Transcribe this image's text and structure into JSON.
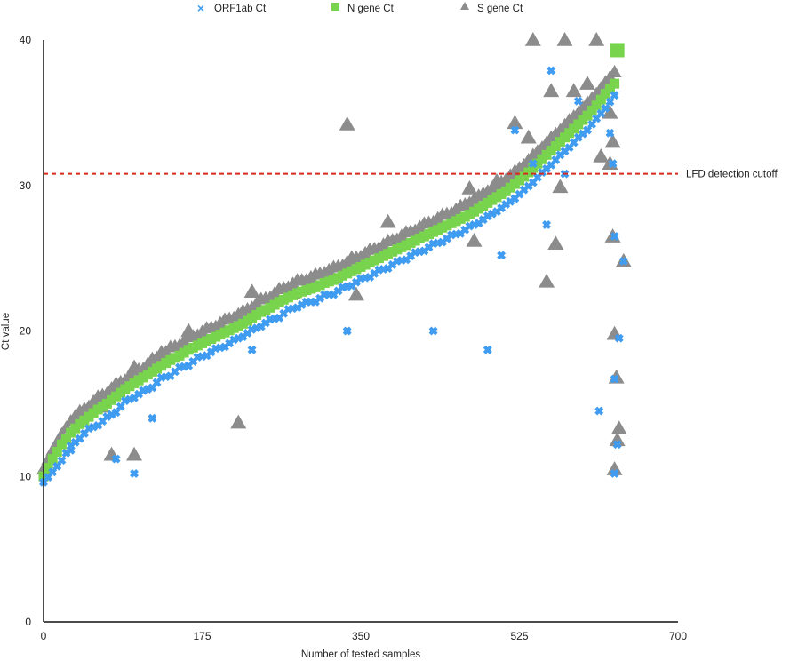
{
  "chart_data": {
    "type": "scatter",
    "title": "",
    "xlabel": "Number of tested samples",
    "ylabel": "Ct value",
    "xlim": [
      0,
      700
    ],
    "ylim": [
      0,
      40
    ],
    "xticks": [
      0,
      175,
      350,
      525,
      700
    ],
    "yticks": [
      0,
      10,
      20,
      30,
      40
    ],
    "grid": false,
    "legend_position": "top",
    "reference_line": {
      "y": 30.8,
      "label": "LFD detection cutoff",
      "color": "#d62a1e",
      "style": "dashed"
    },
    "series": [
      {
        "name": "S gene Ct",
        "marker": "triangle",
        "color": "#8c8c8c",
        "x_start": 0,
        "x_step": 10,
        "values": [
          10.5,
          11.8,
          12.9,
          13.8,
          14.5,
          14.8,
          15.5,
          15.7,
          16.4,
          16.6,
          17.3,
          17.4,
          18.1,
          18.2,
          18.9,
          19,
          19.6,
          19.7,
          20.2,
          20.3,
          20.8,
          20.9,
          21.4,
          21.6,
          22.2,
          22.3,
          22.9,
          23,
          23.5,
          23.5,
          23.9,
          24,
          24.4,
          24.5,
          25,
          25.1,
          25.6,
          25.7,
          26.2,
          26.3,
          26.8,
          26.9,
          27.4,
          27.5,
          28,
          28.1,
          28.6,
          28.8,
          29.3,
          29.6,
          30.1,
          30.4,
          31,
          31.4,
          32.1,
          32.6,
          33.3,
          33.8,
          34.5,
          35,
          35.7,
          36.3,
          37.1,
          37.8
        ],
        "outliers": [
          [
            65,
            14.8
          ],
          [
            75,
            11.5
          ],
          [
            100,
            11.5
          ],
          [
            100,
            17.5
          ],
          [
            130,
            18.5
          ],
          [
            160,
            20
          ],
          [
            215,
            13.7
          ],
          [
            230,
            22.7
          ],
          [
            275,
            22.6
          ],
          [
            335,
            34.2
          ],
          [
            340,
            25
          ],
          [
            345,
            22.5
          ],
          [
            380,
            27.5
          ],
          [
            470,
            29.8
          ],
          [
            475,
            26.2
          ],
          [
            500,
            30.3
          ],
          [
            520,
            34.3
          ],
          [
            535,
            33.3
          ],
          [
            540,
            40
          ],
          [
            555,
            23.4
          ],
          [
            560,
            36.5
          ],
          [
            565,
            26
          ],
          [
            570,
            29.9
          ],
          [
            575,
            40
          ],
          [
            585,
            36.5
          ],
          [
            600,
            37
          ],
          [
            610,
            40
          ],
          [
            615,
            32
          ],
          [
            625,
            31.5
          ],
          [
            628,
            26.5
          ],
          [
            630,
            19.8
          ],
          [
            632,
            16.8
          ],
          [
            635,
            13.3
          ],
          [
            633,
            12.5
          ],
          [
            630,
            10.5
          ],
          [
            640,
            24.8
          ],
          [
            628,
            33
          ],
          [
            625,
            35
          ]
        ]
      },
      {
        "name": "N gene Ct",
        "marker": "square",
        "color": "#78d44c",
        "x_start": 0,
        "x_step": 10,
        "values": [
          10,
          11.2,
          12.2,
          13,
          13.6,
          14.1,
          14.6,
          15,
          15.5,
          16,
          16.4,
          16.8,
          17.2,
          17.6,
          18,
          18.3,
          18.7,
          19,
          19.3,
          19.6,
          19.9,
          20.2,
          20.5,
          20.9,
          21.3,
          21.6,
          22,
          22.3,
          22.6,
          22.8,
          23,
          23.3,
          23.5,
          23.8,
          24.1,
          24.4,
          24.7,
          25,
          25.3,
          25.6,
          25.9,
          26.2,
          26.5,
          26.8,
          27.1,
          27.4,
          27.7,
          28,
          28.4,
          28.8,
          29.2,
          29.6,
          30.1,
          30.6,
          31.2,
          31.8,
          32.4,
          33,
          33.6,
          34.2,
          34.8,
          35.5,
          36.3,
          37
        ],
        "outliers": [
          [
            633,
            39.3
          ]
        ]
      },
      {
        "name": "ORF1ab Ct",
        "marker": "x",
        "color": "#3f9cf0",
        "x_start": 0,
        "x_step": 10,
        "values": [
          9.6,
          10.3,
          11.1,
          12.1,
          12.6,
          13.3,
          13.5,
          14.1,
          14.4,
          15.2,
          15.4,
          15.9,
          16.1,
          16.8,
          16.9,
          17.5,
          17.6,
          18.2,
          18.3,
          18.8,
          18.9,
          19.4,
          19.6,
          20.1,
          20.3,
          20.8,
          20.9,
          21.5,
          21.6,
          22,
          22,
          22.5,
          22.5,
          23,
          23.1,
          23.6,
          23.7,
          24.2,
          24.3,
          24.8,
          24.9,
          25.4,
          25.5,
          26,
          26.1,
          26.6,
          26.7,
          27.2,
          27.4,
          27.9,
          28.2,
          28.7,
          29.1,
          29.7,
          30.2,
          30.9,
          31.4,
          32.1,
          32.6,
          33.3,
          33.8,
          34.6,
          35.3,
          36.2
        ],
        "outliers": [
          [
            30,
            11.8
          ],
          [
            80,
            11.2
          ],
          [
            100,
            10.2
          ],
          [
            120,
            14
          ],
          [
            230,
            18.7
          ],
          [
            335,
            20
          ],
          [
            430,
            20
          ],
          [
            490,
            18.7
          ],
          [
            505,
            25.2
          ],
          [
            520,
            33.8
          ],
          [
            540,
            31.5
          ],
          [
            555,
            27.3
          ],
          [
            560,
            37.9
          ],
          [
            575,
            30.8
          ],
          [
            590,
            35.8
          ],
          [
            613,
            14.5
          ],
          [
            625,
            33.6
          ],
          [
            630,
            10.2
          ],
          [
            633,
            12.2
          ],
          [
            630,
            16.7
          ],
          [
            635,
            19.5
          ],
          [
            630,
            26.5
          ],
          [
            640,
            24.8
          ],
          [
            628,
            31.5
          ]
        ]
      }
    ],
    "legend": [
      "ORF1ab Ct",
      "N gene Ct",
      "S gene Ct"
    ]
  }
}
